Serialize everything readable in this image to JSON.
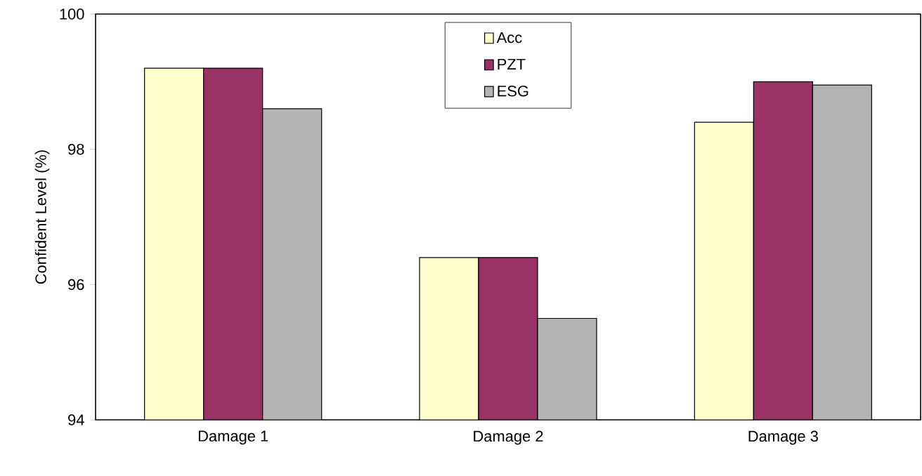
{
  "chart_data": {
    "type": "bar",
    "ylabel": "Confident Level (%)",
    "categories": [
      "Damage 1",
      "Damage 2",
      "Damage 3"
    ],
    "series": [
      {
        "name": "Acc",
        "color": "#ffffcc",
        "values": [
          99.2,
          96.4,
          98.4
        ]
      },
      {
        "name": "PZT",
        "color": "#993366",
        "values": [
          99.2,
          96.4,
          99.0
        ]
      },
      {
        "name": "ESG",
        "color": "#b4b4b4",
        "values": [
          98.6,
          95.5,
          98.95
        ]
      }
    ],
    "ylim": [
      94,
      100
    ],
    "yticks": [
      94,
      96,
      98,
      100
    ],
    "legend": "top"
  }
}
